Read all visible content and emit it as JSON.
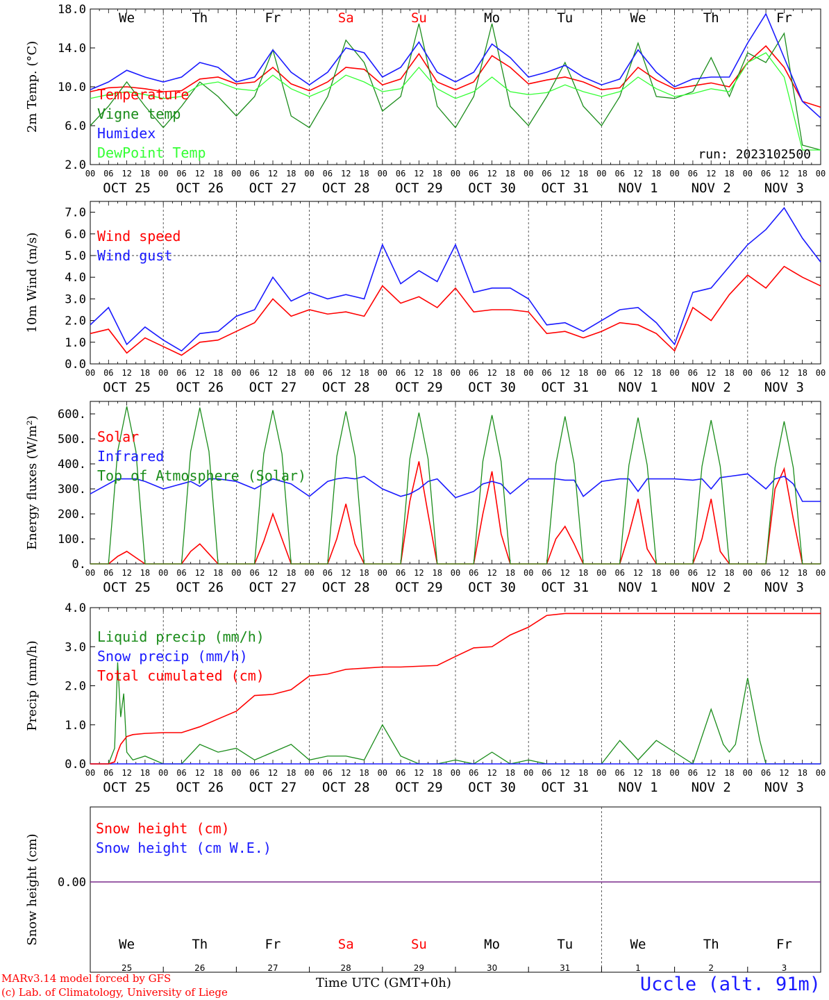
{
  "footer": {
    "credit_line1": "MARv3.14 model forced by GFS",
    "credit_line2": "(c) Lab. of Climatology, University of Liege",
    "xlabel": "Time UTC (GMT+0h)",
    "station": "Uccle (alt. 91m)",
    "month_label": "OCT"
  },
  "colors": {
    "red": "#ff0000",
    "darkgreen": "#1a8c1a",
    "blue": "#1a1aff",
    "lightgreen": "#33ff33",
    "purple": "#7a2a8c"
  },
  "chart_data": [
    {
      "type": "line",
      "ylabel": "2m Temp. (°C)",
      "ylim": [
        2,
        18
      ],
      "yticks": [
        "2.0",
        "6.0",
        "10.0",
        "14.0",
        "18.0"
      ],
      "run_label": "run: 2023102500",
      "weekday_labels": [
        "We",
        "Th",
        "Fr",
        "Sa",
        "Su",
        "Mo",
        "Tu",
        "We",
        "Th",
        "Fr"
      ],
      "weekday_colors": [
        "black",
        "black",
        "black",
        "red",
        "red",
        "black",
        "black",
        "black",
        "black",
        "black"
      ],
      "x_hours": [
        0,
        6,
        12,
        18,
        24,
        30,
        36,
        42,
        48,
        54,
        60,
        66,
        72,
        78,
        84,
        90,
        96,
        102,
        108,
        114,
        120,
        126,
        132,
        138,
        144,
        150,
        156,
        162,
        168,
        174,
        180,
        186,
        192,
        198,
        204,
        210,
        216,
        222,
        228,
        234,
        240
      ],
      "series": [
        {
          "name": "Temperature",
          "color": "red",
          "values": [
            9.5,
            9.9,
            10.0,
            9.8,
            9.5,
            9.6,
            10.8,
            11.0,
            10.3,
            10.5,
            12.0,
            10.3,
            9.6,
            10.5,
            12.0,
            11.8,
            10.2,
            10.8,
            13.4,
            10.5,
            9.7,
            10.5,
            13.2,
            12.0,
            10.3,
            10.7,
            11.0,
            10.5,
            9.7,
            9.9,
            12.0,
            10.7,
            9.8,
            10.1,
            10.4,
            10.0,
            12.5,
            14.2,
            12.0,
            8.5,
            7.9
          ]
        },
        {
          "name": "Vigne temp",
          "color": "darkgreen",
          "values": [
            6.0,
            8.0,
            10.5,
            8.0,
            5.8,
            8.0,
            10.5,
            9.0,
            7.0,
            9.0,
            13.8,
            7.0,
            5.8,
            9.0,
            14.8,
            12.5,
            7.5,
            9.0,
            16.5,
            8.0,
            5.8,
            9.0,
            16.5,
            8.0,
            6.0,
            9.0,
            12.5,
            8.0,
            6.0,
            9.0,
            14.5,
            9.0,
            8.8,
            9.5,
            13.0,
            9.0,
            13.5,
            12.5,
            15.5,
            4.0,
            3.5
          ]
        },
        {
          "name": "Humidex",
          "color": "blue",
          "values": [
            9.7,
            10.5,
            11.7,
            11.0,
            10.5,
            11.0,
            12.5,
            12.0,
            10.5,
            11.0,
            13.8,
            11.5,
            10.2,
            11.5,
            14.0,
            13.5,
            11.0,
            12.0,
            14.6,
            11.5,
            10.5,
            11.5,
            14.4,
            13.0,
            11.0,
            11.5,
            12.2,
            11.0,
            10.2,
            10.8,
            13.8,
            11.5,
            10.0,
            10.8,
            11.0,
            11.0,
            14.5,
            17.5,
            13.0,
            8.5,
            6.8
          ]
        },
        {
          "name": "DewPoint Temp",
          "color": "lightgreen",
          "values": [
            8.8,
            9.2,
            9.5,
            9.2,
            8.8,
            9.0,
            10.2,
            10.5,
            9.8,
            9.6,
            11.2,
            9.8,
            9.0,
            9.8,
            11.2,
            10.5,
            9.5,
            9.8,
            12.0,
            9.8,
            8.8,
            9.5,
            11.0,
            9.5,
            9.2,
            9.4,
            10.2,
            9.5,
            9.0,
            9.5,
            11.0,
            9.8,
            9.0,
            9.3,
            9.8,
            9.5,
            12.5,
            13.5,
            11.0,
            3.5,
            3.5
          ]
        }
      ]
    },
    {
      "type": "line",
      "ylabel": "10m Wind (m/s)",
      "ylim": [
        0,
        7.5
      ],
      "yticks": [
        "0.0",
        "1.0",
        "2.0",
        "3.0",
        "4.0",
        "5.0",
        "6.0",
        "7.0"
      ],
      "reference_line": 5.0,
      "x_hours": [
        0,
        6,
        12,
        18,
        24,
        30,
        36,
        42,
        48,
        54,
        60,
        66,
        72,
        78,
        84,
        90,
        96,
        102,
        108,
        114,
        120,
        126,
        132,
        138,
        144,
        150,
        156,
        162,
        168,
        174,
        180,
        186,
        192,
        198,
        204,
        210,
        216,
        222,
        228,
        234,
        240
      ],
      "series": [
        {
          "name": "Wind speed",
          "color": "red",
          "values": [
            1.4,
            1.6,
            0.5,
            1.2,
            0.8,
            0.4,
            1.0,
            1.1,
            1.5,
            1.9,
            3.0,
            2.2,
            2.5,
            2.3,
            2.4,
            2.2,
            3.6,
            2.8,
            3.1,
            2.6,
            3.5,
            2.4,
            2.5,
            2.5,
            2.4,
            1.4,
            1.5,
            1.2,
            1.5,
            1.9,
            1.8,
            1.4,
            0.6,
            2.6,
            2.0,
            3.2,
            4.1,
            3.5,
            4.5,
            4.0,
            3.6
          ]
        },
        {
          "name": "Wind gust",
          "color": "blue",
          "values": [
            1.8,
            2.6,
            0.9,
            1.7,
            1.1,
            0.6,
            1.4,
            1.5,
            2.2,
            2.5,
            4.0,
            2.9,
            3.3,
            3.0,
            3.2,
            3.0,
            5.5,
            3.7,
            4.3,
            3.8,
            5.5,
            3.3,
            3.5,
            3.5,
            3.0,
            1.8,
            1.9,
            1.5,
            2.0,
            2.5,
            2.6,
            1.9,
            0.9,
            3.3,
            3.5,
            4.5,
            5.5,
            6.2,
            7.2,
            5.8,
            4.7
          ]
        }
      ]
    },
    {
      "type": "line",
      "ylabel": "Energy fluxes (W/m²)",
      "ylim": [
        0,
        650
      ],
      "yticks": [
        "0.",
        "100.",
        "200.",
        "300.",
        "400.",
        "500.",
        "600."
      ],
      "x_hours": [
        0,
        6,
        9,
        12,
        15,
        18,
        24,
        30,
        33,
        36,
        39,
        42,
        48,
        54,
        57,
        60,
        63,
        66,
        72,
        78,
        81,
        84,
        87,
        90,
        96,
        102,
        105,
        108,
        111,
        114,
        120,
        126,
        129,
        132,
        135,
        138,
        144,
        150,
        153,
        156,
        159,
        162,
        168,
        174,
        177,
        180,
        183,
        186,
        192,
        198,
        201,
        204,
        207,
        210,
        216,
        222,
        225,
        228,
        231,
        234,
        240
      ],
      "series": [
        {
          "name": "Solar",
          "color": "red",
          "values": [
            0,
            0,
            30,
            50,
            25,
            0,
            0,
            0,
            50,
            80,
            40,
            0,
            0,
            0,
            90,
            200,
            100,
            0,
            0,
            0,
            100,
            240,
            80,
            0,
            0,
            0,
            250,
            410,
            200,
            0,
            0,
            0,
            200,
            370,
            120,
            0,
            0,
            0,
            100,
            150,
            80,
            0,
            0,
            0,
            120,
            260,
            60,
            0,
            0,
            0,
            100,
            260,
            50,
            0,
            0,
            0,
            300,
            380,
            180,
            0,
            0
          ]
        },
        {
          "name": "Infrared",
          "color": "blue",
          "values": [
            280,
            320,
            340,
            340,
            340,
            330,
            300,
            320,
            330,
            310,
            340,
            340,
            330,
            300,
            320,
            340,
            330,
            320,
            270,
            330,
            340,
            345,
            340,
            350,
            300,
            270,
            280,
            300,
            330,
            340,
            265,
            290,
            320,
            330,
            320,
            280,
            340,
            340,
            340,
            335,
            335,
            270,
            330,
            340,
            340,
            290,
            340,
            340,
            340,
            335,
            340,
            300,
            345,
            350,
            360,
            300,
            340,
            350,
            320,
            250,
            250
          ]
        },
        {
          "name": "Top of Atmosphere (Solar)",
          "color": "darkgreen",
          "values": [
            0,
            0,
            450,
            630,
            450,
            0,
            0,
            0,
            450,
            625,
            450,
            0,
            0,
            0,
            440,
            615,
            440,
            0,
            0,
            0,
            430,
            610,
            430,
            0,
            0,
            0,
            420,
            605,
            420,
            0,
            0,
            0,
            410,
            595,
            410,
            0,
            0,
            0,
            400,
            590,
            400,
            0,
            0,
            0,
            395,
            585,
            395,
            0,
            0,
            0,
            390,
            575,
            390,
            0,
            0,
            0,
            385,
            570,
            385,
            0,
            0
          ]
        }
      ]
    },
    {
      "type": "line",
      "ylabel": "Precip (mm/h)",
      "ylim": [
        0,
        4
      ],
      "yticks": [
        "0.0",
        "1.0",
        "2.0",
        "3.0",
        "4.0"
      ],
      "x_hours": [
        0,
        6,
        8,
        9,
        10,
        11,
        12,
        14,
        18,
        24,
        30,
        36,
        42,
        48,
        54,
        60,
        66,
        72,
        78,
        84,
        90,
        96,
        102,
        108,
        114,
        120,
        126,
        132,
        138,
        144,
        150,
        156,
        162,
        168,
        174,
        180,
        186,
        192,
        198,
        204,
        208,
        210,
        212,
        216,
        220,
        222,
        224,
        228,
        234,
        240
      ],
      "series": [
        {
          "name": "Liquid precip (mm/h)",
          "color": "darkgreen",
          "values": [
            0,
            0,
            0.4,
            2.6,
            1.2,
            1.8,
            0.3,
            0.1,
            0.2,
            0,
            0,
            0.5,
            0.3,
            0.4,
            0.1,
            0.3,
            0.5,
            0.1,
            0.2,
            0.2,
            0.1,
            1.0,
            0.2,
            0,
            0,
            0.1,
            0,
            0.3,
            0,
            0.1,
            0,
            0,
            0,
            0,
            0.6,
            0.1,
            0.6,
            0.3,
            0,
            1.4,
            0.5,
            0.3,
            0.5,
            2.2,
            0.6,
            0,
            0,
            0,
            0,
            0
          ]
        },
        {
          "name": "Snow precip (mm/h)",
          "color": "blue",
          "values": [
            0,
            0,
            0,
            0,
            0,
            0,
            0,
            0,
            0,
            0,
            0,
            0,
            0,
            0,
            0,
            0,
            0,
            0,
            0,
            0,
            0,
            0,
            0,
            0,
            0,
            0,
            0,
            0,
            0,
            0,
            0,
            0,
            0,
            0,
            0,
            0,
            0,
            0,
            0,
            0,
            0,
            0,
            0,
            0,
            0,
            0,
            0,
            0,
            0,
            0
          ]
        },
        {
          "name": "Total cumulated (cm)",
          "color": "red",
          "values": [
            0,
            0,
            0.05,
            0.3,
            0.5,
            0.6,
            0.7,
            0.75,
            0.78,
            0.8,
            0.8,
            0.95,
            1.15,
            1.35,
            1.75,
            1.78,
            1.9,
            2.25,
            2.3,
            2.42,
            2.45,
            2.48,
            2.48,
            2.5,
            2.52,
            2.75,
            2.97,
            3.0,
            3.3,
            3.5,
            3.8,
            3.85,
            3.85,
            3.85,
            3.85,
            3.85,
            3.85,
            3.85,
            3.85,
            3.85,
            3.85,
            3.85,
            3.85,
            3.85,
            3.85,
            3.85,
            3.85,
            3.85,
            3.85,
            3.85
          ]
        }
      ]
    },
    {
      "type": "line",
      "ylabel": "Snow height (cm)",
      "ytick_label": "0.00",
      "series": [
        {
          "name": "Snow height (cm)",
          "color": "red",
          "values": [
            0,
            0
          ]
        },
        {
          "name": "Snow height (cm W.E.)",
          "color": "blue",
          "values": [
            0,
            0
          ]
        }
      ],
      "weekday_labels": [
        "We",
        "Th",
        "Fr",
        "Sa",
        "Su",
        "Mo",
        "Tu",
        "We",
        "Th",
        "Fr"
      ],
      "weekday_colors": [
        "black",
        "black",
        "black",
        "red",
        "red",
        "black",
        "black",
        "black",
        "black",
        "black"
      ],
      "day_numbers": [
        "25",
        "26",
        "27",
        "28",
        "29",
        "30",
        "31",
        "1",
        "2",
        "3"
      ]
    }
  ],
  "x_axis": {
    "hour_labels": [
      "00",
      "06",
      "12",
      "18"
    ],
    "final_hour_label": "00",
    "date_labels": [
      "OCT 25",
      "OCT 26",
      "OCT 27",
      "OCT 28",
      "OCT 29",
      "OCT 30",
      "OCT 31",
      "NOV  1",
      "NOV  2",
      "NOV  3"
    ]
  }
}
